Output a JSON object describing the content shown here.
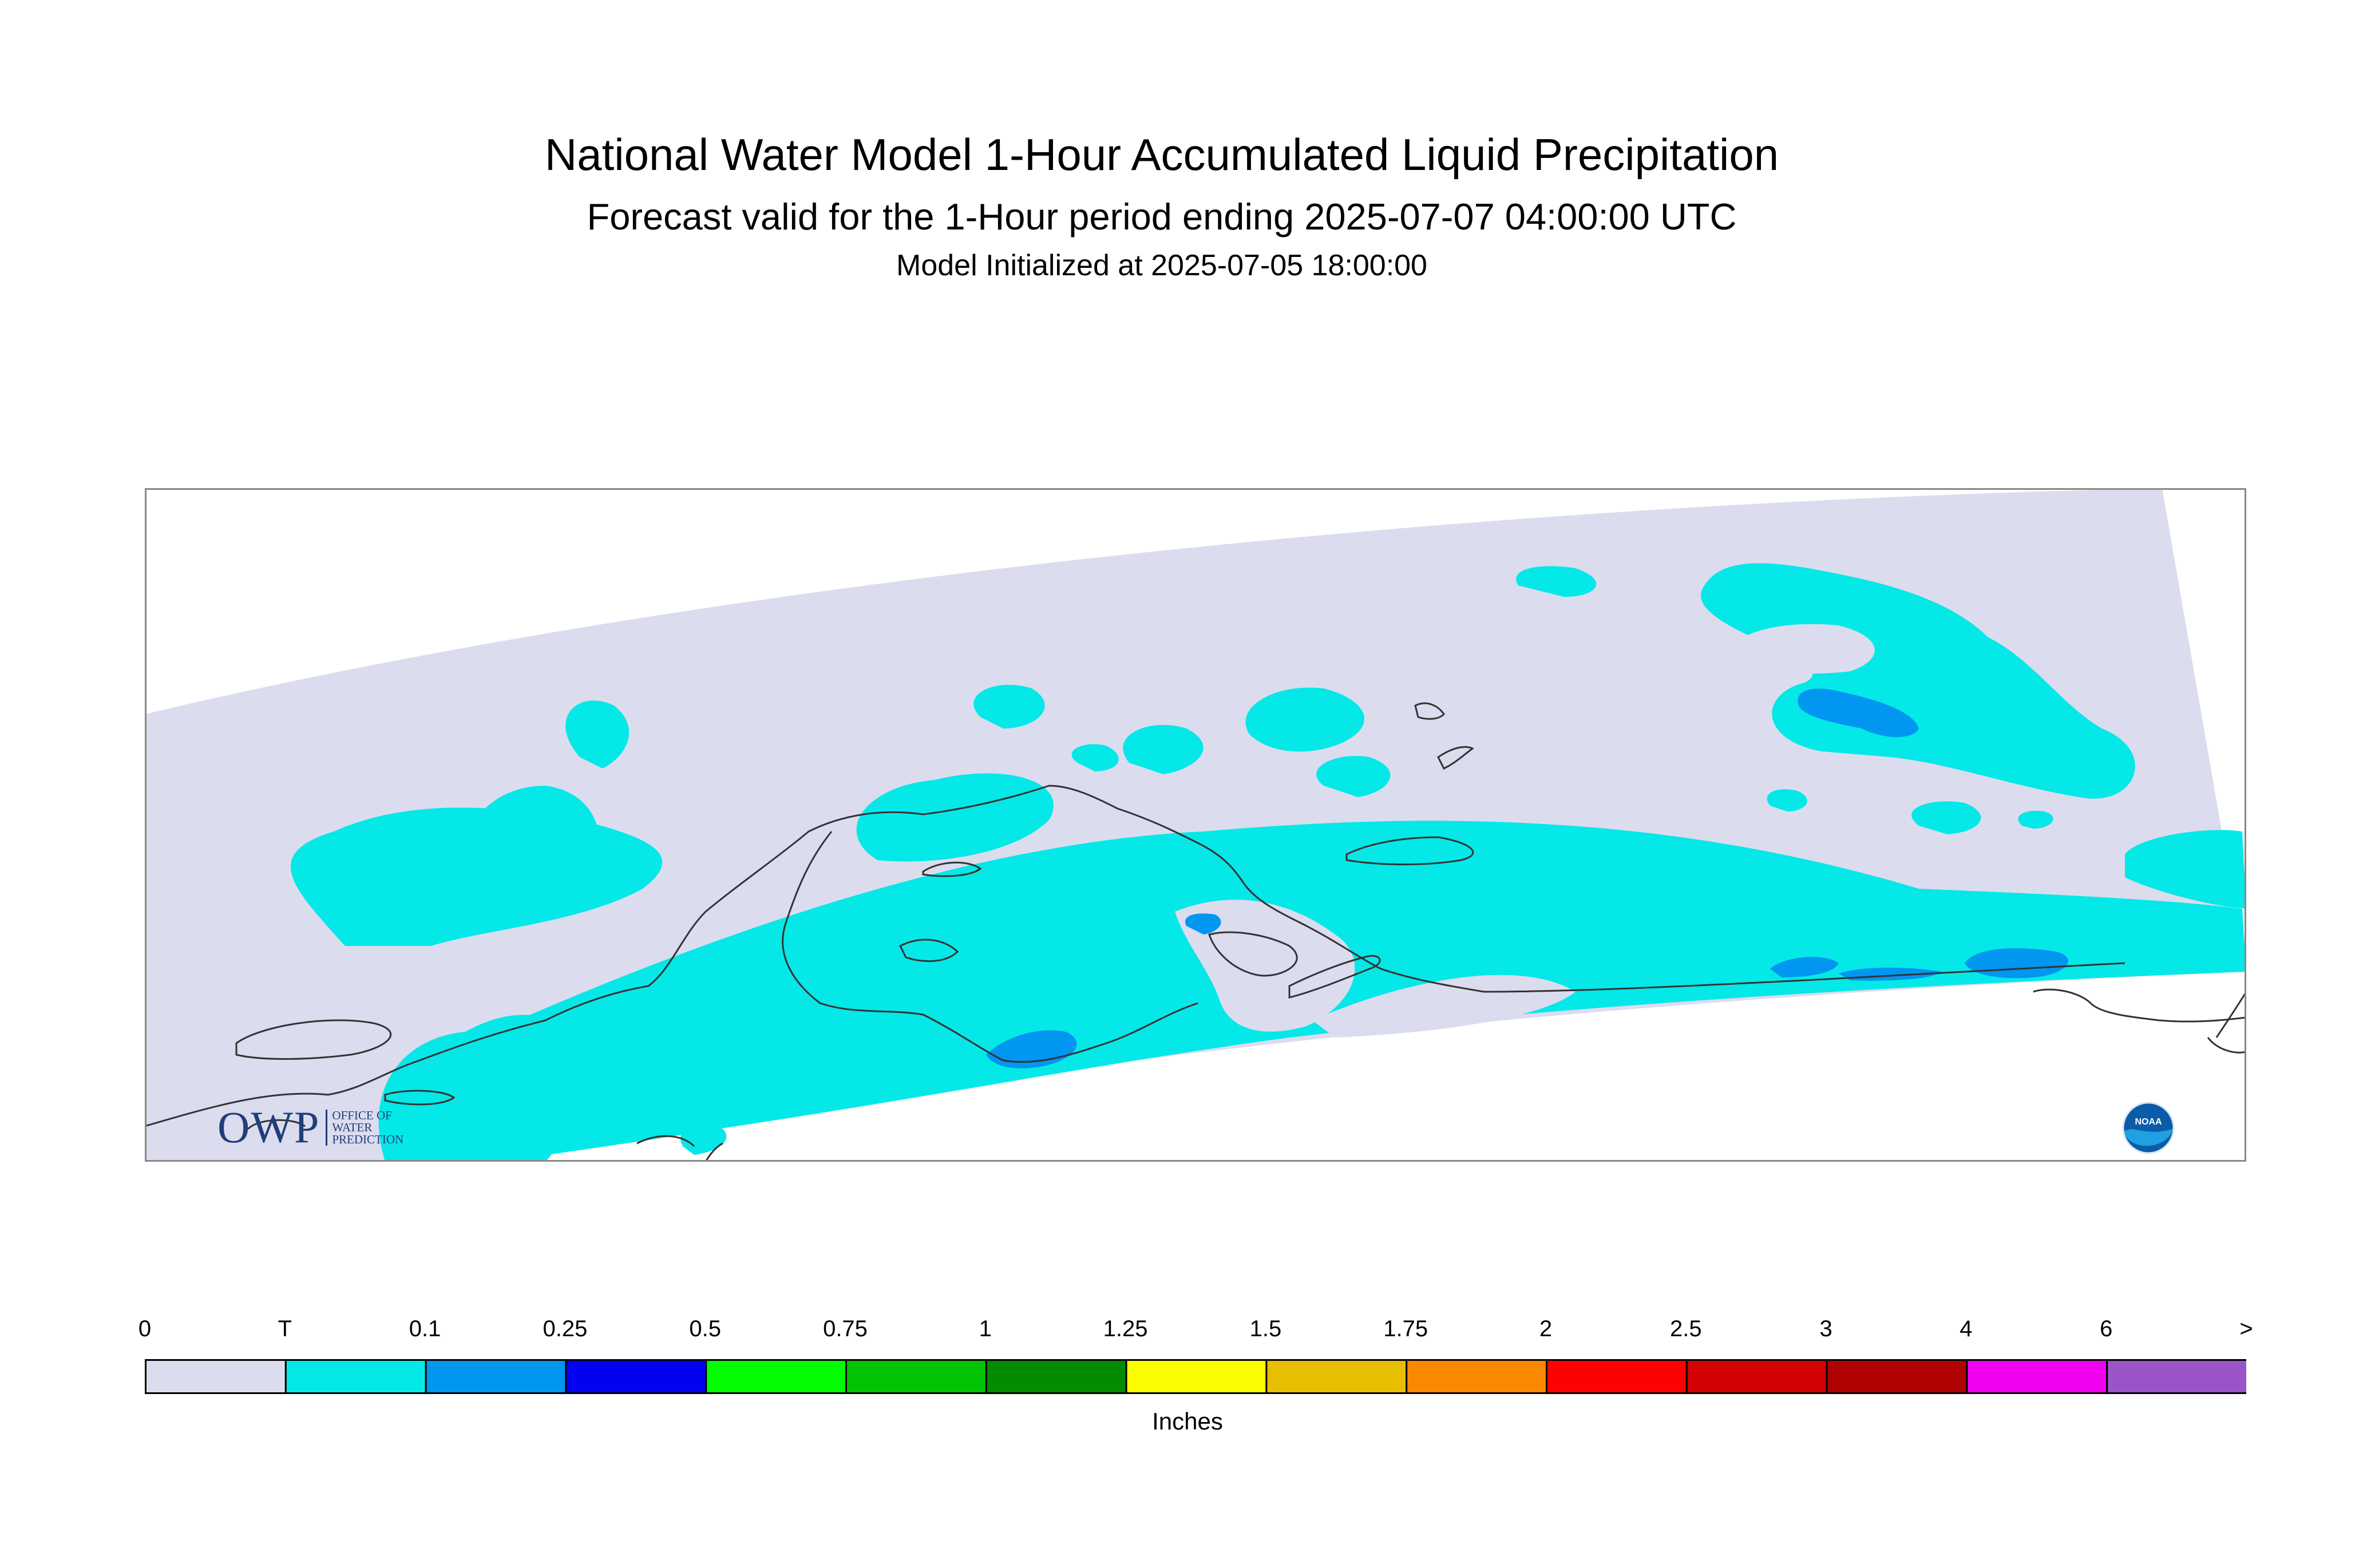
{
  "header": {
    "title": "National Water Model 1-Hour Accumulated Liquid Precipitation",
    "subtitle": "Forecast valid for the 1-Hour period ending 2025-07-07 04:00:00 UTC",
    "init": "Model Initialized at 2025-07-05 18:00:00"
  },
  "legend": {
    "labels": [
      "0",
      "T",
      "0.1",
      "0.25",
      "0.5",
      "0.75",
      "1",
      "1.25",
      "1.5",
      "1.75",
      "2",
      "2.5",
      "3",
      "4",
      "6",
      ">"
    ],
    "colors": [
      "#dcdcef",
      "#05e8e8",
      "#0196f0",
      "#0202f2",
      "#02fc02",
      "#02c402",
      "#028c02",
      "#fcfc02",
      "#e8be02",
      "#fc8802",
      "#fc0202",
      "#d20202",
      "#b00202",
      "#f002f0",
      "#9954c8"
    ],
    "units": "Inches"
  },
  "logos": {
    "owp_mark": "OWP",
    "owp_lines": [
      "OFFICE OF",
      "WATER",
      "PREDICTION"
    ],
    "noaa": "NOAA"
  },
  "map": {
    "colors": {
      "no_precip": "#dcdcef",
      "trace": "#05e8e8",
      "light": "#0196f0",
      "outside": "#ffffff",
      "coast": "#333333"
    }
  }
}
